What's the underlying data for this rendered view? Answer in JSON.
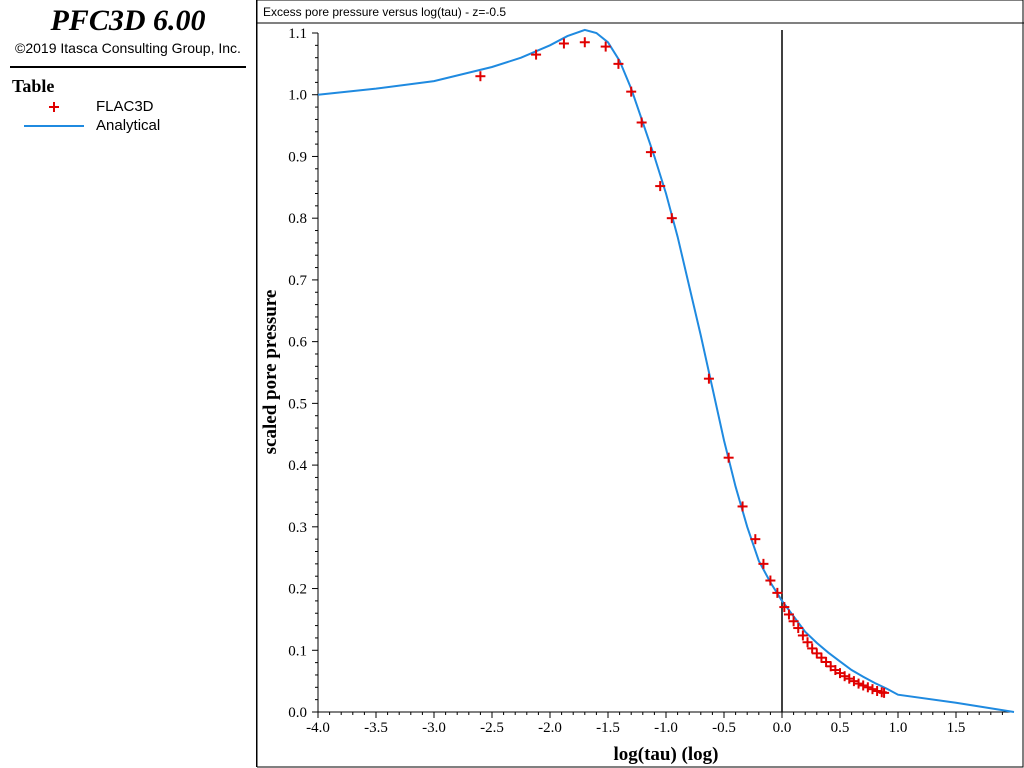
{
  "app": {
    "title": "PFC3D 6.00",
    "copyright": "©2019 Itasca Consulting Group, Inc."
  },
  "legend": {
    "heading": "Table",
    "items": [
      {
        "label": "FLAC3D",
        "symbol": "plus-marker",
        "color": "#e00000"
      },
      {
        "label": "Analytical",
        "symbol": "line",
        "color": "#1f8ae0"
      }
    ]
  },
  "chart_data": {
    "type": "line",
    "title": "Excess pore pressure versus log(tau) - z=-0.5",
    "xlabel": "log(tau) (log)",
    "ylabel": "scaled pore pressure",
    "xlim": [
      -4.0,
      2.0
    ],
    "ylim": [
      0.0,
      1.1
    ],
    "xticks": [
      "-4.0",
      "-3.5",
      "-3.0",
      "-2.5",
      "-2.0",
      "-1.5",
      "-1.0",
      "-0.5",
      "0.0",
      "0.5",
      "1.0",
      "1.5"
    ],
    "yticks": [
      "0.0",
      "0.1",
      "0.2",
      "0.3",
      "0.4",
      "0.5",
      "0.6",
      "0.7",
      "0.8",
      "0.9",
      "1.0",
      "1.1"
    ],
    "reference_line_x": 0.0,
    "grid": false,
    "series": [
      {
        "name": "FLAC3D",
        "style": "scatter-plus",
        "color": "#e00000",
        "x": [
          -2.6,
          -2.12,
          -1.88,
          -1.7,
          -1.52,
          -1.41,
          -1.3,
          -1.21,
          -1.13,
          -1.05,
          -0.95,
          -0.63,
          -0.46,
          -0.34,
          -0.23,
          -0.16,
          -0.1,
          -0.04,
          0.02,
          0.06,
          0.1,
          0.14,
          0.18,
          0.22,
          0.26,
          0.3,
          0.34,
          0.38,
          0.42,
          0.46,
          0.5,
          0.54,
          0.58,
          0.62,
          0.66,
          0.7,
          0.74,
          0.78,
          0.82,
          0.86,
          0.88
        ],
        "y": [
          1.03,
          1.065,
          1.083,
          1.085,
          1.078,
          1.05,
          1.005,
          0.955,
          0.907,
          0.852,
          0.8,
          0.54,
          0.412,
          0.333,
          0.28,
          0.24,
          0.213,
          0.193,
          0.17,
          0.158,
          0.147,
          0.136,
          0.124,
          0.113,
          0.103,
          0.095,
          0.088,
          0.081,
          0.074,
          0.068,
          0.063,
          0.058,
          0.054,
          0.05,
          0.046,
          0.043,
          0.04,
          0.037,
          0.034,
          0.032,
          0.031
        ]
      },
      {
        "name": "Analytical",
        "style": "line",
        "color": "#1f8ae0",
        "x": [
          -4.0,
          -3.5,
          -3.0,
          -2.5,
          -2.25,
          -2.0,
          -1.85,
          -1.7,
          -1.6,
          -1.5,
          -1.4,
          -1.3,
          -1.2,
          -1.1,
          -1.0,
          -0.9,
          -0.8,
          -0.7,
          -0.6,
          -0.5,
          -0.4,
          -0.3,
          -0.2,
          -0.1,
          0.0,
          0.1,
          0.2,
          0.3,
          0.4,
          0.5,
          0.6,
          0.7,
          0.8,
          0.9,
          1.0,
          1.5,
          2.0
        ],
        "y": [
          1.0,
          1.01,
          1.022,
          1.045,
          1.06,
          1.08,
          1.095,
          1.105,
          1.1,
          1.085,
          1.055,
          1.01,
          0.955,
          0.9,
          0.84,
          0.77,
          0.69,
          0.61,
          0.525,
          0.44,
          0.365,
          0.3,
          0.245,
          0.21,
          0.18,
          0.155,
          0.13,
          0.112,
          0.096,
          0.082,
          0.068,
          0.057,
          0.047,
          0.038,
          0.028,
          0.015,
          0.0
        ]
      }
    ]
  }
}
